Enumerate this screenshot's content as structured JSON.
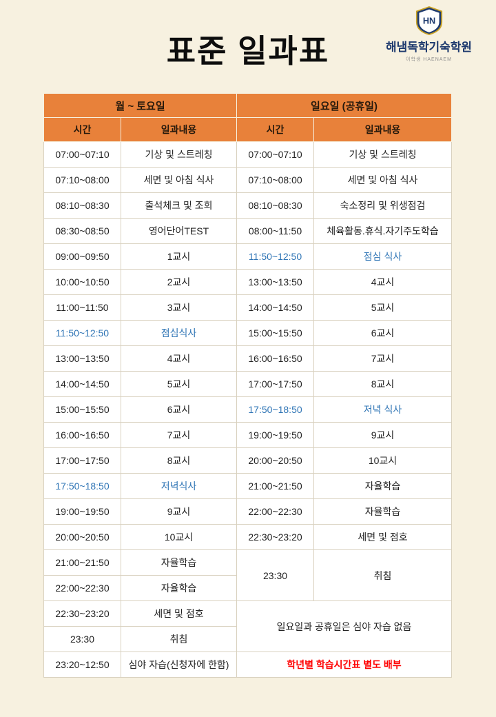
{
  "page": {
    "title": "표준 일과표"
  },
  "logo": {
    "monogram": "HN",
    "name": "해냄독학기숙학원",
    "subtitle": "이학생 HAENAEM"
  },
  "colors": {
    "background": "#f7f1e0",
    "header_bg": "#e8813a",
    "meal_text": "#2e74b5",
    "notice_text": "#ff0000",
    "logo_navy": "#1e3a6e"
  },
  "table": {
    "group_headers": [
      "월 ~ 토요일",
      "일요일 (공휴일)"
    ],
    "column_headers": [
      "시간",
      "일과내용",
      "시간",
      "일과내용"
    ],
    "body_rows": [
      [
        {
          "t": "07:00~07:10"
        },
        {
          "t": "기상 및 스트레칭"
        },
        {
          "t": "07:00~07:10"
        },
        {
          "t": "기상 및 스트레칭"
        }
      ],
      [
        {
          "t": "07:10~08:00"
        },
        {
          "t": "세면 및 아침 식사"
        },
        {
          "t": "07:10~08:00"
        },
        {
          "t": "세면 및 아침 식사"
        }
      ],
      [
        {
          "t": "08:10~08:30"
        },
        {
          "t": "출석체크 및 조회"
        },
        {
          "t": "08:10~08:30"
        },
        {
          "t": "숙소정리 및 위생점검"
        }
      ],
      [
        {
          "t": "08:30~08:50"
        },
        {
          "t": "영어단어TEST"
        },
        {
          "t": "08:00~11:50"
        },
        {
          "t": "체육활동.휴식.자기주도학습"
        }
      ],
      [
        {
          "t": "09:00~09:50"
        },
        {
          "t": "1교시"
        },
        {
          "t": "11:50~12:50",
          "c": "meal"
        },
        {
          "t": "점심 식사",
          "c": "meal"
        }
      ],
      [
        {
          "t": "10:00~10:50"
        },
        {
          "t": "2교시"
        },
        {
          "t": "13:00~13:50"
        },
        {
          "t": "4교시"
        }
      ],
      [
        {
          "t": "11:00~11:50"
        },
        {
          "t": "3교시"
        },
        {
          "t": "14:00~14:50"
        },
        {
          "t": "5교시"
        }
      ],
      [
        {
          "t": "11:50~12:50",
          "c": "meal"
        },
        {
          "t": "점심식사",
          "c": "meal"
        },
        {
          "t": "15:00~15:50"
        },
        {
          "t": "6교시"
        }
      ],
      [
        {
          "t": "13:00~13:50"
        },
        {
          "t": "4교시"
        },
        {
          "t": "16:00~16:50"
        },
        {
          "t": "7교시"
        }
      ],
      [
        {
          "t": "14:00~14:50"
        },
        {
          "t": "5교시"
        },
        {
          "t": "17:00~17:50"
        },
        {
          "t": "8교시"
        }
      ],
      [
        {
          "t": "15:00~15:50"
        },
        {
          "t": "6교시"
        },
        {
          "t": "17:50~18:50",
          "c": "meal"
        },
        {
          "t": "저녁 식사",
          "c": "meal"
        }
      ],
      [
        {
          "t": "16:00~16:50"
        },
        {
          "t": "7교시"
        },
        {
          "t": "19:00~19:50"
        },
        {
          "t": "9교시"
        }
      ],
      [
        {
          "t": "17:00~17:50"
        },
        {
          "t": "8교시"
        },
        {
          "t": "20:00~20:50"
        },
        {
          "t": "10교시"
        }
      ],
      [
        {
          "t": "17:50~18:50",
          "c": "meal"
        },
        {
          "t": "저녁식사",
          "c": "meal"
        },
        {
          "t": "21:00~21:50"
        },
        {
          "t": "자율학습"
        }
      ],
      [
        {
          "t": "19:00~19:50"
        },
        {
          "t": "9교시"
        },
        {
          "t": "22:00~22:30"
        },
        {
          "t": "자율학습"
        }
      ],
      [
        {
          "t": "20:00~20:50"
        },
        {
          "t": "10교시"
        },
        {
          "t": "22:30~23:20"
        },
        {
          "t": "세면 및 점호"
        }
      ],
      [
        {
          "t": "21:00~21:50"
        },
        {
          "t": "자율학습"
        },
        {
          "t": "23:30",
          "rs": 2
        },
        {
          "t": "취침",
          "rs": 2
        }
      ],
      [
        {
          "t": "22:00~22:30"
        },
        {
          "t": "자율학습"
        }
      ],
      [
        {
          "t": "22:30~23:20"
        },
        {
          "t": "세면 및 점호"
        },
        {
          "t": "일요일과 공휴일은 심야 자습 없음",
          "cs": 2,
          "rs": 2
        }
      ],
      [
        {
          "t": "23:30"
        },
        {
          "t": "취침"
        }
      ],
      [
        {
          "t": "23:20~12:50"
        },
        {
          "t": "심야 자습(신청자에 한함)"
        },
        {
          "t": "학년별 학습시간표 별도 배부",
          "cs": 2,
          "c": "red"
        }
      ]
    ]
  }
}
